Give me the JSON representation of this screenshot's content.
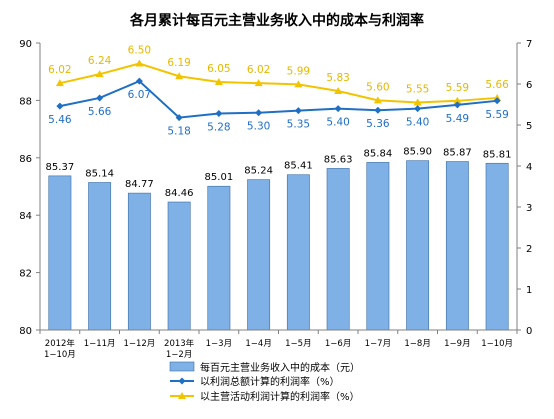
{
  "chart_data": {
    "type": "bar",
    "title": "各月累计每百元主营业务收入中的成本与利润率",
    "categories": [
      [
        "2012年",
        "1−10月"
      ],
      [
        "1−11月"
      ],
      [
        "1−12月"
      ],
      [
        "2013年",
        "1−2月"
      ],
      [
        "1−3月"
      ],
      [
        "1−4月"
      ],
      [
        "1−5月"
      ],
      [
        "1−6月"
      ],
      [
        "1−7月"
      ],
      [
        "1−8月"
      ],
      [
        "1−9月"
      ],
      [
        "1−10月"
      ]
    ],
    "left_axis": {
      "min": 80,
      "max": 90,
      "ticks": [
        80,
        82,
        84,
        86,
        88,
        90
      ]
    },
    "right_axis": {
      "min": 0,
      "max": 7,
      "ticks": [
        0,
        1,
        2,
        3,
        4,
        5,
        6,
        7
      ]
    },
    "series": [
      {
        "name": "每百元主营业务收入中的成本（元）",
        "kind": "bar",
        "axis": "left",
        "color": "#7fb1e6",
        "values": [
          85.37,
          85.14,
          84.77,
          84.46,
          85.01,
          85.24,
          85.41,
          85.63,
          85.84,
          85.9,
          85.87,
          85.81
        ],
        "labels": [
          "85.37",
          "85.14",
          "84.77",
          "84.46",
          "85.01",
          "85.24",
          "85.41",
          "85.63",
          "85.84",
          "85.90",
          "85.87",
          "85.81"
        ]
      },
      {
        "name": "以利润总额计算的利润率（%）",
        "kind": "line",
        "axis": "right",
        "color": "#1f6fc5",
        "marker": "diamond",
        "values": [
          5.46,
          5.66,
          6.07,
          5.18,
          5.28,
          5.3,
          5.35,
          5.4,
          5.36,
          5.4,
          5.49,
          5.59
        ],
        "labels": [
          "5.46",
          "5.66",
          "6.07",
          "5.18",
          "5.28",
          "5.30",
          "5.35",
          "5.40",
          "5.36",
          "5.40",
          "5.49",
          "5.59"
        ]
      },
      {
        "name": "以主营活动利润计算的利润率（%）",
        "kind": "line",
        "axis": "right",
        "color": "#f2c400",
        "marker": "triangle",
        "values": [
          6.02,
          6.24,
          6.5,
          6.19,
          6.05,
          6.02,
          5.99,
          5.83,
          5.6,
          5.55,
          5.59,
          5.66
        ],
        "labels": [
          "6.02",
          "6.24",
          "6.50",
          "6.19",
          "6.05",
          "6.02",
          "5.99",
          "5.83",
          "5.60",
          "5.55",
          "5.59",
          "5.66"
        ]
      }
    ],
    "legend_position": "bottom"
  }
}
